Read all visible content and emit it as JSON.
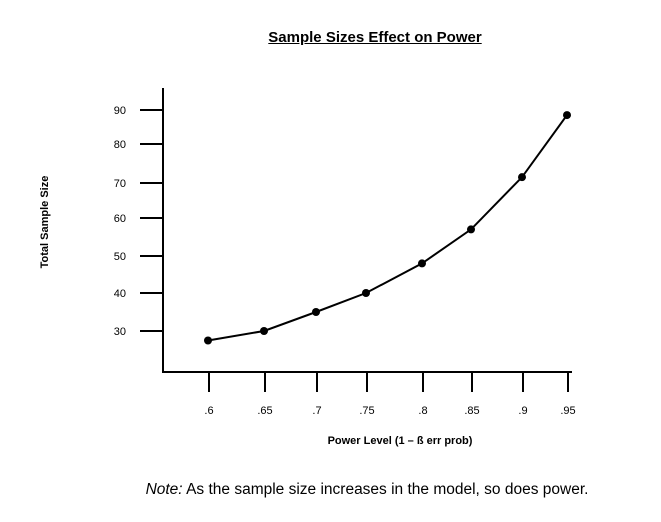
{
  "chart_data": {
    "type": "line",
    "title": "Sample Sizes Effect on Power",
    "xlabel": "Power Level (1 – ß err prob)",
    "ylabel": "Total Sample Size",
    "x_tick_labels": [
      ".6",
      ".65",
      ".7",
      ".75",
      ".8",
      ".85",
      ".9",
      ".95"
    ],
    "y_tick_labels": [
      "30",
      "40",
      "50",
      "60",
      "70",
      "80",
      "90"
    ],
    "y_ticks": [
      30,
      40,
      50,
      60,
      70,
      80,
      90
    ],
    "series": [
      {
        "name": "Total Sample Size",
        "x": [
          0.6,
          0.65,
          0.7,
          0.75,
          0.8,
          0.85,
          0.9,
          0.95
        ],
        "values": [
          27.5,
          30,
          35,
          40,
          48,
          57,
          71.5,
          88.5
        ]
      }
    ],
    "grid": false,
    "legend": "none"
  },
  "note": {
    "label": "Note:",
    "text": " As the sample size increases in the model, so does power."
  }
}
